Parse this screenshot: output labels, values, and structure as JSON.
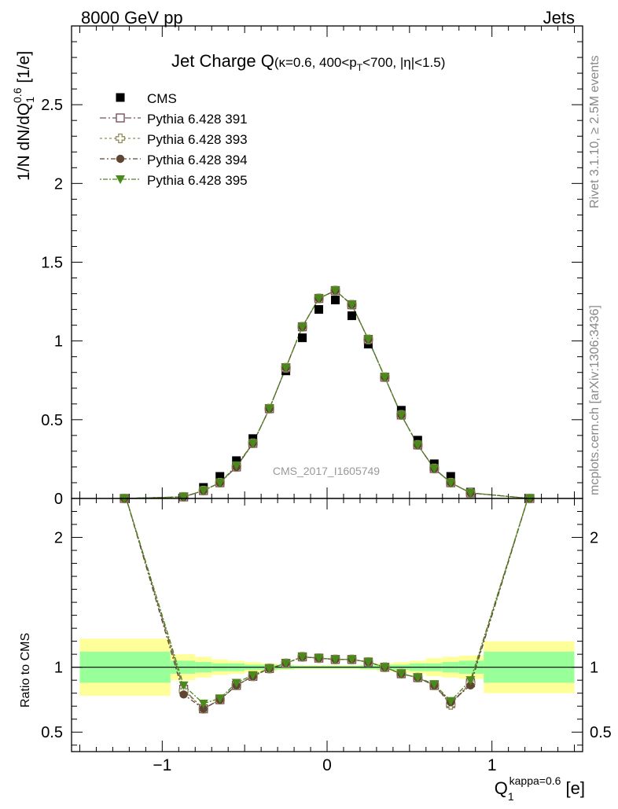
{
  "header": {
    "energy": "8000 GeV pp",
    "process": "Jets",
    "title_main": "Jet Charge Q",
    "title_sub": "(κ=0.6, 400<p",
    "title_sub_T": "T",
    "title_sub_rest": "<700, |η|<1.5)",
    "side_rivet": "Rivet 3.1.10, ≥ 2.5M events",
    "side_mcplots": "mcplots.cern.ch [arXiv:1306:3436]",
    "watermark": "CMS_2017_I1605749"
  },
  "axes": {
    "ylabel_main": "1/N dN/dQ",
    "ylabel_sub": "1",
    "ylabel_sup": "0.6",
    "ylabel_unit": " [1/e]",
    "ylabel_ratio": "Ratio to CMS",
    "xlabel": "Q",
    "xlabel_sub": "1",
    "xlabel_sup": "kappa=0.6",
    "xlabel_unit": " [e]"
  },
  "colors": {
    "data": "#000000",
    "p391": "#7b4f5f",
    "p393": "#8e8e5a",
    "p394": "#5e4632",
    "p395": "#4a8a1a",
    "band_inner": "#99ff99",
    "band_outer": "#ffff99"
  },
  "chart_data": {
    "type": "scatter",
    "main": {
      "xlim": [
        -1.55,
        1.55
      ],
      "ylim": [
        0,
        3.0
      ],
      "x_ticks": [
        "-1",
        "0",
        "1"
      ],
      "y_ticks": [
        "0",
        "0.5",
        "1",
        "1.5",
        "2",
        "2.5"
      ],
      "x": [
        -1.23,
        -0.87,
        -0.75,
        -0.65,
        -0.55,
        -0.45,
        -0.35,
        -0.25,
        -0.15,
        -0.05,
        0.05,
        0.15,
        0.25,
        0.35,
        0.45,
        0.55,
        0.65,
        0.75,
        0.87,
        1.23
      ],
      "series": [
        {
          "name": "CMS",
          "marker": "filled-square",
          "values": [
            0.0,
            0.01,
            0.07,
            0.14,
            0.24,
            0.38,
            0.57,
            0.81,
            1.02,
            1.2,
            1.26,
            1.16,
            0.98,
            0.77,
            0.56,
            0.37,
            0.22,
            0.14,
            0.04,
            0.0
          ]
        },
        {
          "name": "Pythia 6.428 391",
          "marker": "open-square",
          "values": [
            0.0,
            0.01,
            0.05,
            0.1,
            0.2,
            0.35,
            0.57,
            0.83,
            1.09,
            1.27,
            1.32,
            1.23,
            1.01,
            0.77,
            0.53,
            0.34,
            0.19,
            0.1,
            0.035,
            0.0
          ]
        },
        {
          "name": "Pythia 6.428 393",
          "marker": "open-cross",
          "values": [
            0.0,
            0.01,
            0.05,
            0.1,
            0.2,
            0.35,
            0.57,
            0.83,
            1.09,
            1.27,
            1.32,
            1.23,
            1.01,
            0.77,
            0.53,
            0.34,
            0.19,
            0.1,
            0.035,
            0.0
          ]
        },
        {
          "name": "Pythia 6.428 394",
          "marker": "filled-circle",
          "values": [
            0.0,
            0.01,
            0.05,
            0.1,
            0.2,
            0.35,
            0.57,
            0.83,
            1.09,
            1.27,
            1.32,
            1.23,
            1.01,
            0.77,
            0.53,
            0.34,
            0.19,
            0.1,
            0.035,
            0.0
          ]
        },
        {
          "name": "Pythia 6.428 395",
          "marker": "filled-triangle-down",
          "values": [
            0.0,
            0.01,
            0.05,
            0.1,
            0.21,
            0.35,
            0.57,
            0.83,
            1.09,
            1.27,
            1.32,
            1.23,
            1.01,
            0.77,
            0.53,
            0.34,
            0.19,
            0.1,
            0.035,
            0.0
          ]
        }
      ]
    },
    "ratio": {
      "xlim": [
        -1.55,
        1.55
      ],
      "ylim": [
        0.35,
        2.3
      ],
      "y_ticks": [
        "0.5",
        "1",
        "2"
      ],
      "x": [
        -1.23,
        -0.87,
        -0.75,
        -0.65,
        -0.55,
        -0.45,
        -0.35,
        -0.25,
        -0.15,
        -0.05,
        0.05,
        0.15,
        0.25,
        0.35,
        0.45,
        0.55,
        0.65,
        0.75,
        0.87,
        1.23
      ],
      "series": [
        {
          "name": "Pythia 6.428 391",
          "values": [
            2.35,
            0.83,
            0.68,
            0.75,
            0.86,
            0.93,
            0.99,
            1.03,
            1.08,
            1.07,
            1.06,
            1.06,
            1.04,
            1.0,
            0.95,
            0.92,
            0.86,
            0.72,
            0.88,
            2.35
          ]
        },
        {
          "name": "Pythia 6.428 393",
          "values": [
            2.35,
            0.82,
            0.68,
            0.75,
            0.86,
            0.93,
            0.99,
            1.03,
            1.08,
            1.07,
            1.06,
            1.06,
            1.04,
            1.0,
            0.95,
            0.92,
            0.86,
            0.71,
            0.88,
            2.35
          ]
        },
        {
          "name": "Pythia 6.428 394",
          "values": [
            2.35,
            0.79,
            0.68,
            0.75,
            0.86,
            0.93,
            0.99,
            1.03,
            1.08,
            1.07,
            1.06,
            1.06,
            1.04,
            1.0,
            0.95,
            0.92,
            0.86,
            0.73,
            0.86,
            2.35
          ]
        },
        {
          "name": "Pythia 6.428 395",
          "values": [
            2.35,
            0.86,
            0.72,
            0.76,
            0.88,
            0.94,
            0.99,
            1.03,
            1.08,
            1.07,
            1.06,
            1.06,
            1.04,
            1.0,
            0.95,
            0.92,
            0.87,
            0.74,
            0.9,
            2.35
          ]
        }
      ],
      "band_edges": [
        -1.5,
        -0.95,
        -0.8,
        -0.7,
        -0.6,
        -0.5,
        -0.4,
        -0.3,
        -0.2,
        -0.1,
        0.0,
        0.1,
        0.2,
        0.3,
        0.4,
        0.5,
        0.6,
        0.7,
        0.8,
        0.95,
        1.5
      ],
      "band_inner": [
        0.12,
        0.05,
        0.04,
        0.03,
        0.03,
        0.02,
        0.02,
        0.015,
        0.01,
        0.01,
        0.01,
        0.01,
        0.015,
        0.02,
        0.02,
        0.03,
        0.03,
        0.04,
        0.05,
        0.12
      ],
      "band_outer": [
        0.22,
        0.1,
        0.08,
        0.06,
        0.05,
        0.04,
        0.03,
        0.02,
        0.015,
        0.015,
        0.015,
        0.015,
        0.02,
        0.03,
        0.04,
        0.05,
        0.07,
        0.08,
        0.09,
        0.2
      ]
    }
  }
}
